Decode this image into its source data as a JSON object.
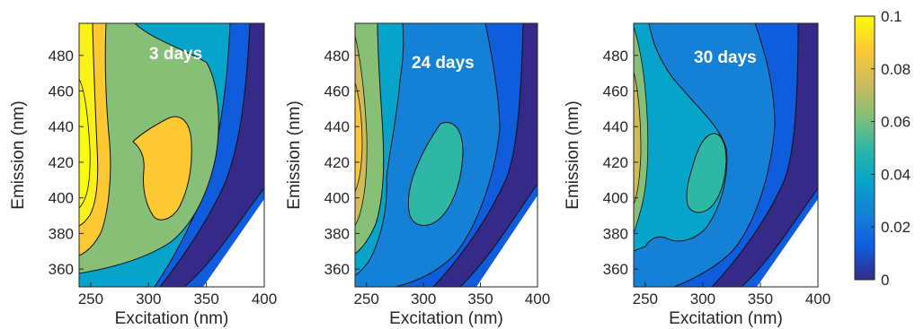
{
  "chart_data": {
    "type": "heatmap",
    "x_range": [
      240,
      400
    ],
    "y_range": [
      350,
      498
    ],
    "xlabel": "Excitation (nm)",
    "ylabel": "Emission (nm)",
    "x_ticks": [
      "250",
      "300",
      "350",
      "400"
    ],
    "y_ticks": [
      "360",
      "380",
      "400",
      "420",
      "440",
      "460",
      "480"
    ],
    "colorbar": {
      "range": [
        0,
        0.1
      ],
      "ticks": [
        "0",
        "0.02",
        "0.04",
        "0.06",
        "0.08",
        "0.1"
      ],
      "colormap": [
        "#352a87",
        "#0f5cdd",
        "#1481d6",
        "#06a4ca",
        "#2eb7a4",
        "#87bf77",
        "#d1bb59",
        "#fec832",
        "#f9fb0e"
      ]
    },
    "panels": [
      {
        "title": "3 days",
        "peak_intensity": 0.1,
        "secondary_peak": {
          "excitation": 312,
          "emission": 420,
          "intensity": 0.08
        }
      },
      {
        "title": "24 days",
        "peak_intensity": 0.08,
        "secondary_peak": {
          "excitation": 315,
          "emission": 418,
          "intensity": 0.06
        }
      },
      {
        "title": "30 days",
        "peak_intensity": 0.07,
        "secondary_peak": {
          "excitation": 312,
          "emission": 410,
          "intensity": 0.05
        }
      }
    ]
  }
}
